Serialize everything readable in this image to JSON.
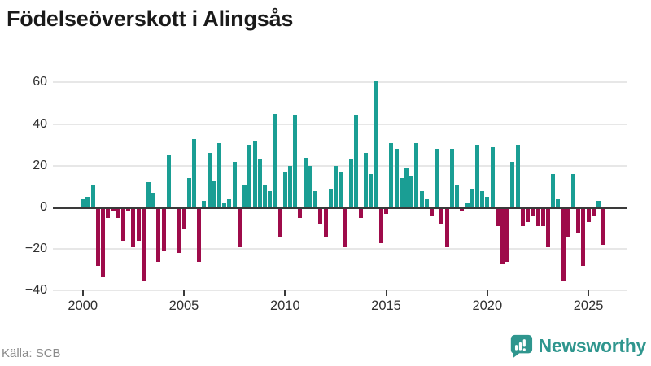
{
  "title": "Födelseöverskott i Alingsås",
  "source": "Källa: SCB",
  "branding": {
    "logo_text": "Newsworthy",
    "logo_icon": "newsworthy-speech-bubble-bar-chart-icon"
  },
  "colors": {
    "positive_bar": "#1a9e94",
    "negative_bar": "#9e0b4a",
    "axis": "#3a3a3a",
    "gridline": "#e7e7e7",
    "tick_text": "#303030",
    "title_text": "#1a1a1a",
    "source_text": "#8a8a8a",
    "brand": "#2f968e"
  },
  "chart_data": {
    "type": "bar",
    "title": "Födelseöverskott i Alingsås",
    "frequency": "quarterly",
    "start_year": 2000,
    "x_tick_labels": [
      "2000",
      "2005",
      "2010",
      "2015",
      "2020",
      "2025"
    ],
    "y_ticks": [
      60,
      40,
      20,
      0,
      -20,
      -40
    ],
    "ylim": [
      -40,
      63
    ],
    "grid": "horizontal",
    "legend": "none",
    "series": [
      {
        "name": "Födelseöverskott",
        "values": [
          4,
          5,
          11,
          -28,
          -33,
          -5,
          -2,
          -5,
          -16,
          -2,
          -19,
          -16,
          -35,
          12,
          7,
          -26,
          -21,
          25,
          0,
          -22,
          -10,
          14,
          33,
          -26,
          3,
          26,
          13,
          31,
          2,
          4,
          22,
          -19,
          11,
          30,
          32,
          23,
          11,
          8,
          45,
          -14,
          17,
          20,
          44,
          -5,
          24,
          20,
          8,
          -8,
          -14,
          9,
          20,
          17,
          -19,
          23,
          44,
          -5,
          26,
          16,
          61,
          -17,
          -3,
          31,
          28,
          14,
          19,
          15,
          31,
          8,
          4,
          -4,
          28,
          -8,
          -19,
          28,
          11,
          -2,
          2,
          9,
          30,
          8,
          5,
          29,
          -9,
          -27,
          -26,
          22,
          30,
          -9,
          -7,
          -4,
          -9,
          -9,
          -19,
          16,
          4,
          -35,
          -14,
          16,
          -12,
          -28,
          -7,
          -4,
          3,
          -18
        ]
      }
    ]
  }
}
